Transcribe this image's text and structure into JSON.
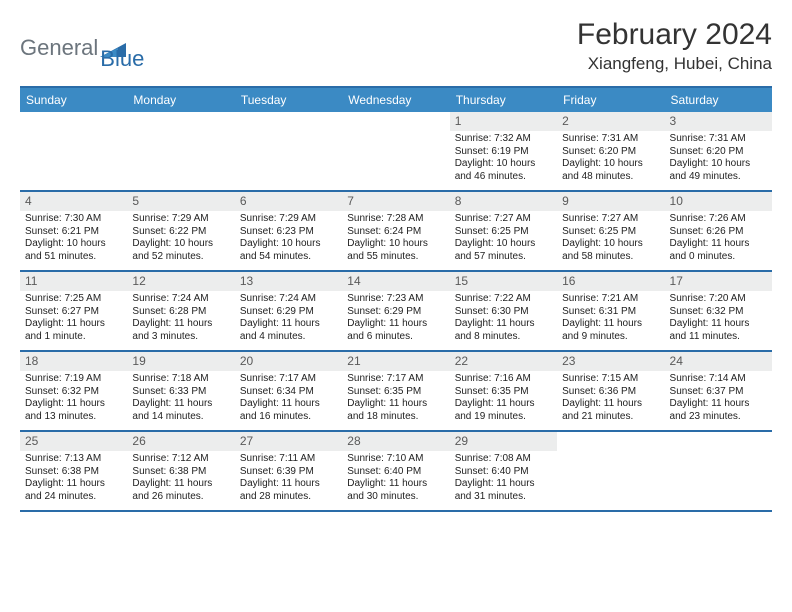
{
  "logo": {
    "general": "General",
    "blue": "Blue"
  },
  "title": "February 2024",
  "location": "Xiangfeng, Hubei, China",
  "colors": {
    "header_bg": "#3b8ac4",
    "border": "#2a6ca8",
    "daynum_bg": "#eceded",
    "logo_gray": "#6c757d",
    "logo_blue": "#2a6ca8"
  },
  "dow": [
    "Sunday",
    "Monday",
    "Tuesday",
    "Wednesday",
    "Thursday",
    "Friday",
    "Saturday"
  ],
  "weeks": [
    [
      {
        "n": "",
        "sr": "",
        "ss": "",
        "d": ""
      },
      {
        "n": "",
        "sr": "",
        "ss": "",
        "d": ""
      },
      {
        "n": "",
        "sr": "",
        "ss": "",
        "d": ""
      },
      {
        "n": "",
        "sr": "",
        "ss": "",
        "d": ""
      },
      {
        "n": "1",
        "sr": "Sunrise: 7:32 AM",
        "ss": "Sunset: 6:19 PM",
        "d": "Daylight: 10 hours and 46 minutes."
      },
      {
        "n": "2",
        "sr": "Sunrise: 7:31 AM",
        "ss": "Sunset: 6:20 PM",
        "d": "Daylight: 10 hours and 48 minutes."
      },
      {
        "n": "3",
        "sr": "Sunrise: 7:31 AM",
        "ss": "Sunset: 6:20 PM",
        "d": "Daylight: 10 hours and 49 minutes."
      }
    ],
    [
      {
        "n": "4",
        "sr": "Sunrise: 7:30 AM",
        "ss": "Sunset: 6:21 PM",
        "d": "Daylight: 10 hours and 51 minutes."
      },
      {
        "n": "5",
        "sr": "Sunrise: 7:29 AM",
        "ss": "Sunset: 6:22 PM",
        "d": "Daylight: 10 hours and 52 minutes."
      },
      {
        "n": "6",
        "sr": "Sunrise: 7:29 AM",
        "ss": "Sunset: 6:23 PM",
        "d": "Daylight: 10 hours and 54 minutes."
      },
      {
        "n": "7",
        "sr": "Sunrise: 7:28 AM",
        "ss": "Sunset: 6:24 PM",
        "d": "Daylight: 10 hours and 55 minutes."
      },
      {
        "n": "8",
        "sr": "Sunrise: 7:27 AM",
        "ss": "Sunset: 6:25 PM",
        "d": "Daylight: 10 hours and 57 minutes."
      },
      {
        "n": "9",
        "sr": "Sunrise: 7:27 AM",
        "ss": "Sunset: 6:25 PM",
        "d": "Daylight: 10 hours and 58 minutes."
      },
      {
        "n": "10",
        "sr": "Sunrise: 7:26 AM",
        "ss": "Sunset: 6:26 PM",
        "d": "Daylight: 11 hours and 0 minutes."
      }
    ],
    [
      {
        "n": "11",
        "sr": "Sunrise: 7:25 AM",
        "ss": "Sunset: 6:27 PM",
        "d": "Daylight: 11 hours and 1 minute."
      },
      {
        "n": "12",
        "sr": "Sunrise: 7:24 AM",
        "ss": "Sunset: 6:28 PM",
        "d": "Daylight: 11 hours and 3 minutes."
      },
      {
        "n": "13",
        "sr": "Sunrise: 7:24 AM",
        "ss": "Sunset: 6:29 PM",
        "d": "Daylight: 11 hours and 4 minutes."
      },
      {
        "n": "14",
        "sr": "Sunrise: 7:23 AM",
        "ss": "Sunset: 6:29 PM",
        "d": "Daylight: 11 hours and 6 minutes."
      },
      {
        "n": "15",
        "sr": "Sunrise: 7:22 AM",
        "ss": "Sunset: 6:30 PM",
        "d": "Daylight: 11 hours and 8 minutes."
      },
      {
        "n": "16",
        "sr": "Sunrise: 7:21 AM",
        "ss": "Sunset: 6:31 PM",
        "d": "Daylight: 11 hours and 9 minutes."
      },
      {
        "n": "17",
        "sr": "Sunrise: 7:20 AM",
        "ss": "Sunset: 6:32 PM",
        "d": "Daylight: 11 hours and 11 minutes."
      }
    ],
    [
      {
        "n": "18",
        "sr": "Sunrise: 7:19 AM",
        "ss": "Sunset: 6:32 PM",
        "d": "Daylight: 11 hours and 13 minutes."
      },
      {
        "n": "19",
        "sr": "Sunrise: 7:18 AM",
        "ss": "Sunset: 6:33 PM",
        "d": "Daylight: 11 hours and 14 minutes."
      },
      {
        "n": "20",
        "sr": "Sunrise: 7:17 AM",
        "ss": "Sunset: 6:34 PM",
        "d": "Daylight: 11 hours and 16 minutes."
      },
      {
        "n": "21",
        "sr": "Sunrise: 7:17 AM",
        "ss": "Sunset: 6:35 PM",
        "d": "Daylight: 11 hours and 18 minutes."
      },
      {
        "n": "22",
        "sr": "Sunrise: 7:16 AM",
        "ss": "Sunset: 6:35 PM",
        "d": "Daylight: 11 hours and 19 minutes."
      },
      {
        "n": "23",
        "sr": "Sunrise: 7:15 AM",
        "ss": "Sunset: 6:36 PM",
        "d": "Daylight: 11 hours and 21 minutes."
      },
      {
        "n": "24",
        "sr": "Sunrise: 7:14 AM",
        "ss": "Sunset: 6:37 PM",
        "d": "Daylight: 11 hours and 23 minutes."
      }
    ],
    [
      {
        "n": "25",
        "sr": "Sunrise: 7:13 AM",
        "ss": "Sunset: 6:38 PM",
        "d": "Daylight: 11 hours and 24 minutes."
      },
      {
        "n": "26",
        "sr": "Sunrise: 7:12 AM",
        "ss": "Sunset: 6:38 PM",
        "d": "Daylight: 11 hours and 26 minutes."
      },
      {
        "n": "27",
        "sr": "Sunrise: 7:11 AM",
        "ss": "Sunset: 6:39 PM",
        "d": "Daylight: 11 hours and 28 minutes."
      },
      {
        "n": "28",
        "sr": "Sunrise: 7:10 AM",
        "ss": "Sunset: 6:40 PM",
        "d": "Daylight: 11 hours and 30 minutes."
      },
      {
        "n": "29",
        "sr": "Sunrise: 7:08 AM",
        "ss": "Sunset: 6:40 PM",
        "d": "Daylight: 11 hours and 31 minutes."
      },
      {
        "n": "",
        "sr": "",
        "ss": "",
        "d": ""
      },
      {
        "n": "",
        "sr": "",
        "ss": "",
        "d": ""
      }
    ]
  ]
}
